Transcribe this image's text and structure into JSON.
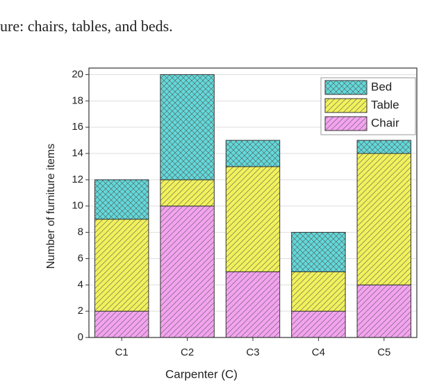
{
  "caption": "ure: chairs, tables, and beds.",
  "chart_data": {
    "type": "stacked_bar",
    "xlabel": "Carpenter (C)",
    "ylabel": "Number of furniture items",
    "categories": [
      "C1",
      "C2",
      "C3",
      "C4",
      "C5"
    ],
    "series": [
      {
        "name": "Chair",
        "color": "#f3a3ef",
        "values": [
          2,
          10,
          5,
          2,
          4
        ]
      },
      {
        "name": "Table",
        "color": "#f1f15c",
        "values": [
          7,
          2,
          8,
          3,
          10
        ]
      },
      {
        "name": "Bed",
        "color": "#62d9da",
        "values": [
          3,
          8,
          2,
          3,
          1
        ]
      }
    ],
    "ylim": [
      0,
      20.5
    ],
    "yticks": [
      0,
      2,
      4,
      6,
      8,
      10,
      12,
      14,
      16,
      18,
      20
    ],
    "grid": true,
    "legend": "upper right"
  }
}
